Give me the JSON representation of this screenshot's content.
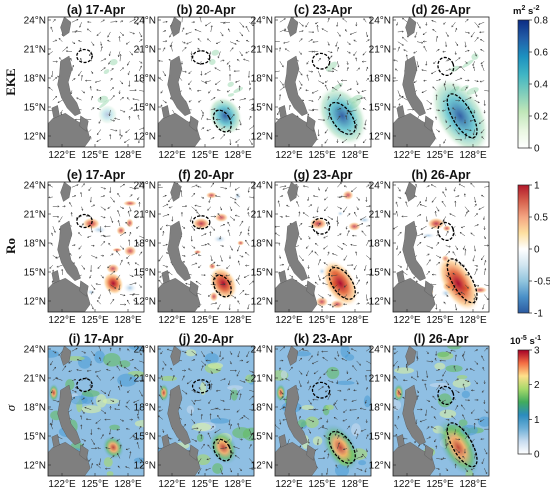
{
  "figure": {
    "row_labels": [
      "EKE",
      "Ro",
      "σ"
    ],
    "x_ticks": [
      "122°E",
      "125°E",
      "128°E"
    ],
    "y_ticks": [
      "24°N",
      "21°N",
      "18°N",
      "15°N",
      "12°N"
    ],
    "dates": [
      "17-Apr",
      "20-Apr",
      "23-Apr",
      "26-Apr"
    ],
    "panel_titles": [
      [
        "(a) 17-Apr",
        "(b) 20-Apr",
        "(c) 23-Apr",
        "(d) 26-Apr"
      ],
      [
        "(e) 17-Apr",
        "(f) 20-Apr",
        "(g) 23-Apr",
        "(h) 26-Apr"
      ],
      [
        "(i) 17-Apr",
        "(j) 20-Apr",
        "(k) 23-Apr",
        "(l) 26-Apr"
      ]
    ]
  },
  "colorbars": [
    {
      "variable": "EKE",
      "unit_text": "m",
      "unit_sup1": "2",
      "unit_mid": " s",
      "unit_sup2": "-2",
      "ticks": [
        "0.8",
        "0.6",
        "0.4",
        "0.2",
        "0"
      ],
      "range": [
        0,
        0.8
      ],
      "colors": [
        "#ffffff",
        "#e8f6e0",
        "#bfe6b8",
        "#7fcdbb",
        "#41b6c4",
        "#1d91c0",
        "#225ea8",
        "#0c2c84"
      ]
    },
    {
      "variable": "Ro",
      "unit_text": "",
      "ticks": [
        "1",
        "0.5",
        "0",
        "-0.5",
        "-1"
      ],
      "range": [
        -1,
        1
      ],
      "colors": [
        "#2c5aa0",
        "#4a90c8",
        "#92c5de",
        "#d1e5f0",
        "#ffffff",
        "#fde0a0",
        "#f4a582",
        "#d6604d",
        "#b2182b"
      ]
    },
    {
      "variable": "σ",
      "unit_text": "10",
      "unit_sup1": "-5",
      "unit_mid": " s",
      "unit_sup2": "-1",
      "ticks": [
        "3",
        "2",
        "1",
        "0"
      ],
      "range": [
        0,
        3
      ],
      "colors": [
        "#ffffff",
        "#c6dbef",
        "#6baed6",
        "#2b8cbe",
        "#41ab5d",
        "#a6d96a",
        "#fee08b",
        "#f46d43",
        "#a50026"
      ]
    }
  ],
  "colors": {
    "land": "#7f7f7f",
    "eddy_contour": "#000000",
    "vectors": "#3a3a3a"
  }
}
